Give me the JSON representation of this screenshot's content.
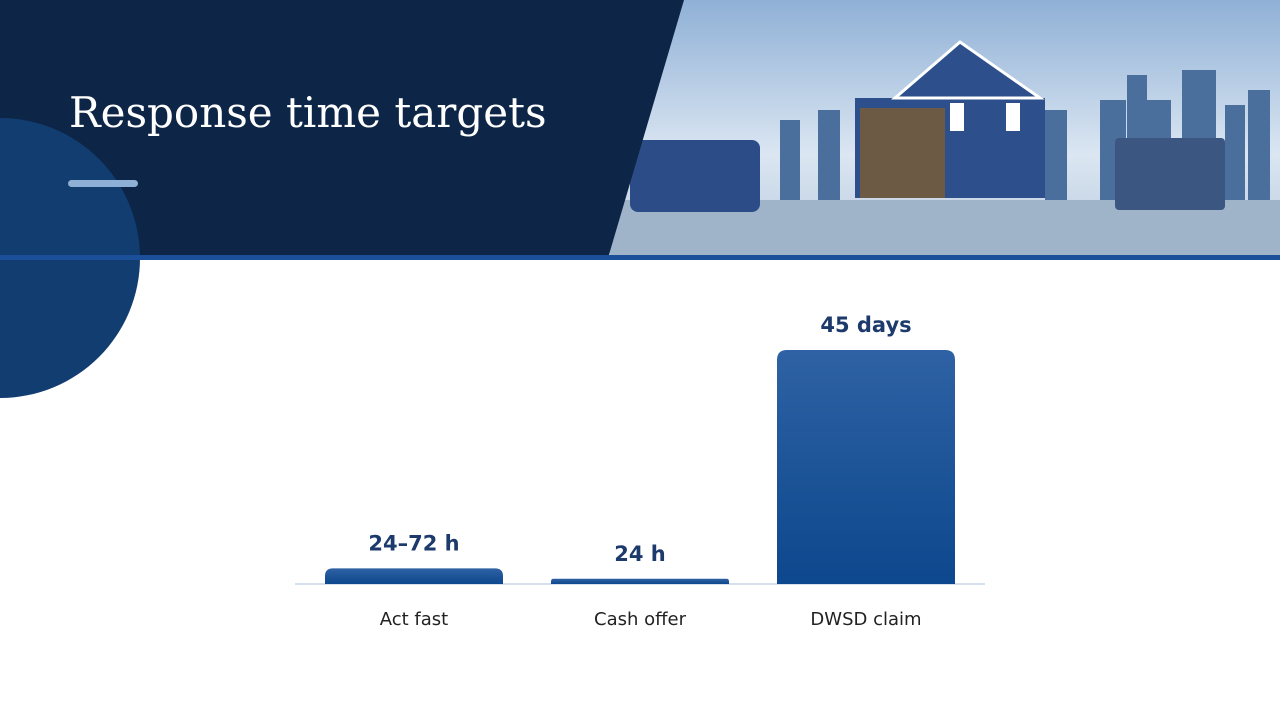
{
  "chart_data": {
    "type": "bar",
    "title": "Response time targets",
    "categories": [
      "Act fast",
      "Cash offer",
      "DWSD claim"
    ],
    "values": [
      72,
      24,
      1080
    ],
    "value_labels": [
      "24–72 h",
      "24 h",
      "45 days"
    ],
    "color": "#1f5596"
  }
}
